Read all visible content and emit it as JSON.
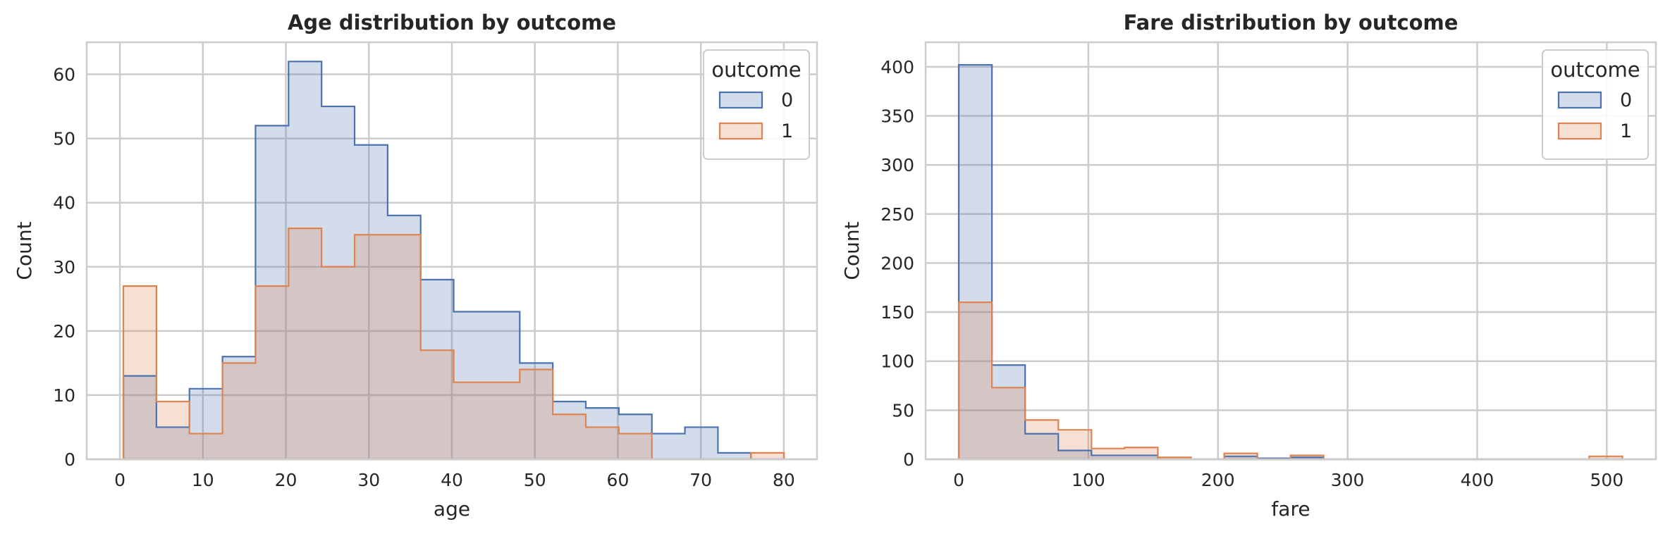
{
  "chart_data": [
    {
      "type": "histogram",
      "title": "Age distribution by outcome",
      "xlabel": "age",
      "ylabel": "Count",
      "xlim": [
        -4,
        84
      ],
      "ylim": [
        0,
        65
      ],
      "xticks": [
        0,
        10,
        20,
        30,
        40,
        50,
        60,
        70,
        80
      ],
      "yticks": [
        0,
        10,
        20,
        30,
        40,
        50,
        60
      ],
      "grid": true,
      "legend": {
        "title": "outcome",
        "placement": "top-right"
      },
      "bin_edges": [
        0.42,
        4.4,
        8.38,
        12.36,
        16.34,
        20.32,
        24.3,
        28.28,
        32.26,
        36.24,
        40.22,
        44.2,
        48.18,
        52.16,
        56.14,
        60.12,
        64.1,
        68.08,
        72.06,
        76.04,
        80.02
      ],
      "series": [
        {
          "name": "0",
          "color": "#4c72b0",
          "fill": "#cdd6e8",
          "values": [
            13,
            5,
            11,
            16,
            52,
            62,
            55,
            49,
            38,
            28,
            23,
            23,
            15,
            9,
            8,
            7,
            4,
            5,
            1,
            0
          ]
        },
        {
          "name": "1",
          "color": "#dd8452",
          "fill": "#f5d9cb",
          "values": [
            27,
            9,
            4,
            15,
            27,
            36,
            30,
            35,
            35,
            17,
            12,
            12,
            14,
            7,
            5,
            4,
            0,
            0,
            0,
            1
          ]
        }
      ]
    },
    {
      "type": "histogram",
      "title": "Fare distribution by outcome",
      "xlabel": "fare",
      "ylabel": "Count",
      "xlim": [
        -25.6,
        537.9
      ],
      "ylim": [
        0,
        425
      ],
      "xticks": [
        0,
        100,
        200,
        300,
        400,
        500
      ],
      "yticks": [
        0,
        50,
        100,
        150,
        200,
        250,
        300,
        350,
        400
      ],
      "grid": true,
      "legend": {
        "title": "outcome",
        "placement": "top-right"
      },
      "bin_edges": [
        0,
        25.6,
        51.2,
        76.8,
        102.4,
        128.0,
        153.6,
        179.2,
        204.8,
        230.4,
        256.0,
        281.6,
        307.2,
        332.8,
        358.4,
        384.0,
        409.6,
        435.2,
        460.8,
        486.4,
        512.0
      ],
      "series": [
        {
          "name": "0",
          "color": "#4c72b0",
          "fill": "#cdd6e8",
          "values": [
            402,
            96,
            26,
            9,
            4,
            4,
            0,
            0,
            3,
            1,
            2,
            0,
            0,
            0,
            0,
            0,
            0,
            0,
            0,
            0
          ]
        },
        {
          "name": "1",
          "color": "#dd8452",
          "fill": "#f5d9cb",
          "values": [
            160,
            73,
            40,
            30,
            11,
            12,
            2,
            0,
            6,
            0,
            4,
            0,
            0,
            0,
            0,
            0,
            0,
            0,
            0,
            3
          ]
        }
      ]
    }
  ]
}
